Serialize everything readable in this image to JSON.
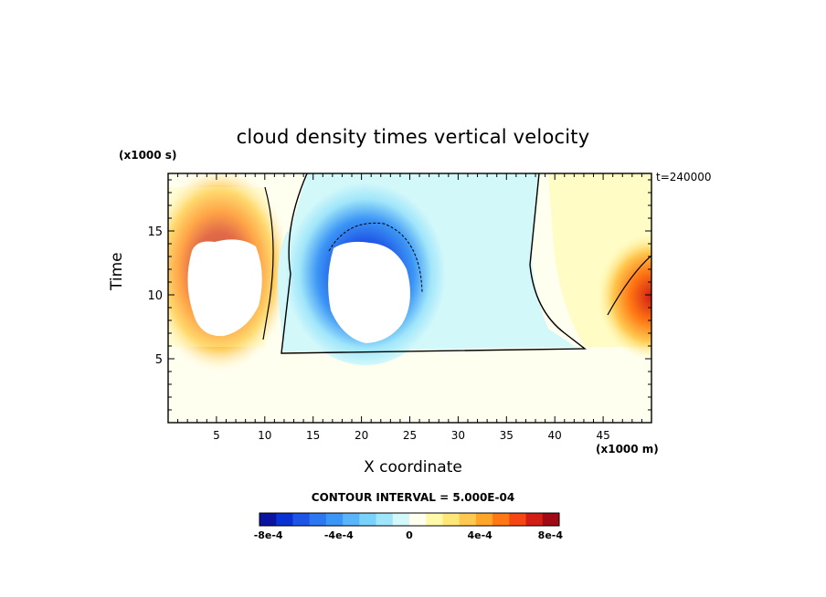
{
  "chart_data": {
    "type": "heatmap",
    "title": "cloud density times vertical velocity",
    "xlabel": "X coordinate",
    "ylabel": "Time",
    "x_unit_label": "(x1000 m)",
    "y_unit_label": "(x1000 s)",
    "time_stamp": "t=240000",
    "contour_interval": "CONTOUR INTERVAL = 5.000E-04",
    "xlim": [
      0,
      50
    ],
    "ylim": [
      0,
      19.5
    ],
    "x_ticks": [
      5,
      10,
      15,
      20,
      25,
      30,
      35,
      40,
      45
    ],
    "y_ticks": [
      5,
      10,
      15
    ],
    "colorbar": {
      "colors": [
        "#0a14a0",
        "#0a32d2",
        "#1e55e6",
        "#2d78f0",
        "#3c96f5",
        "#5ab4fa",
        "#78d2fa",
        "#a0e6fa",
        "#d2f8fa",
        "#fffff0",
        "#fffaaa",
        "#ffe678",
        "#ffc850",
        "#ffa528",
        "#ff7814",
        "#f54614",
        "#d21e14",
        "#a00a14"
      ],
      "tick_labels": [
        "-8e-4",
        "-4e-4",
        "0",
        "4e-4",
        "8e-4"
      ],
      "tick_values": [
        -0.0008,
        -0.0004,
        0,
        0.0004,
        0.0008
      ],
      "range": [
        -0.00085,
        0.00085
      ]
    },
    "features": [
      {
        "name": "positive updraft region",
        "x_range": [
          0,
          11
        ],
        "y_range": [
          6,
          19.5
        ],
        "sign": "positive",
        "peak": 0.0009
      },
      {
        "name": "negative downdraft region",
        "x_range": [
          11,
          38
        ],
        "y_range": [
          5,
          19.5
        ],
        "sign": "negative",
        "peak": -0.0009
      },
      {
        "name": "positive updraft region",
        "x_range": [
          44,
          50
        ],
        "y_range": [
          6,
          14
        ],
        "sign": "positive",
        "peak": 0.0009
      }
    ]
  }
}
